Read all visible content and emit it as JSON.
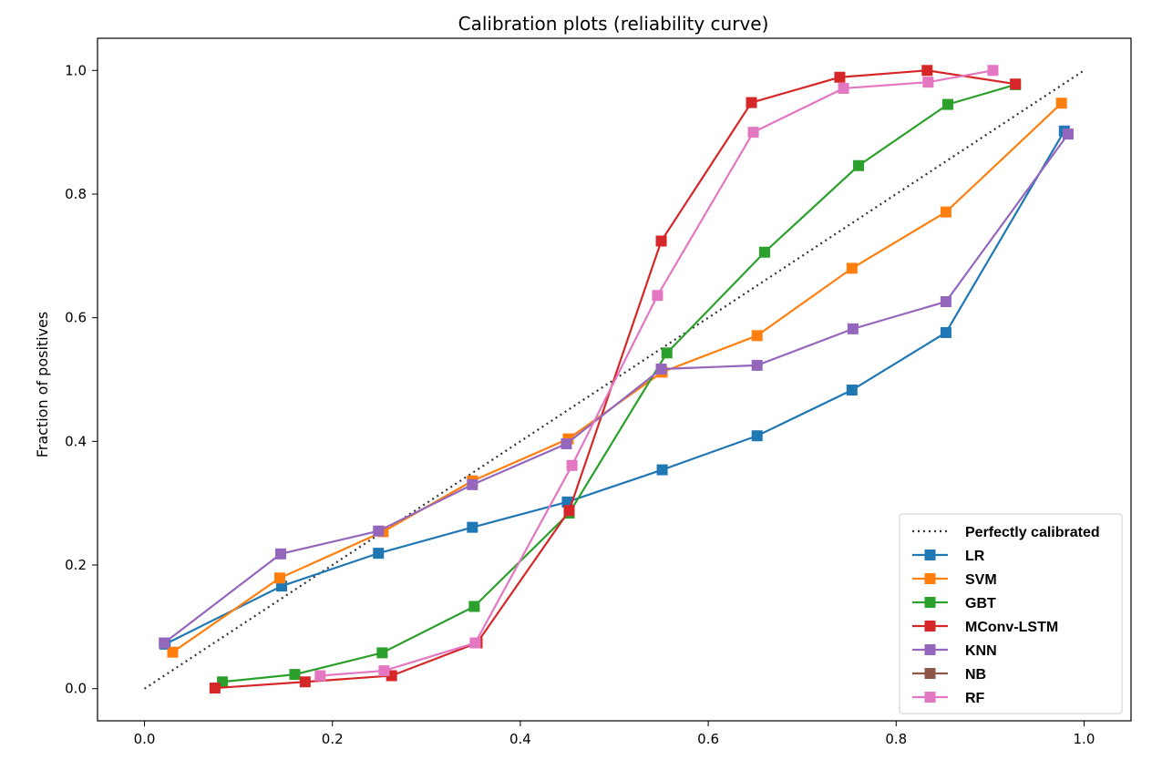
{
  "chart_data": {
    "type": "line",
    "title": "Calibration plots  (reliability curve)",
    "xlabel": "",
    "ylabel": "Fraction of positives",
    "xlim": [
      -0.05,
      1.05
    ],
    "ylim": [
      -0.052,
      1.052
    ],
    "xticks": [
      0.0,
      0.2,
      0.4,
      0.6,
      0.8,
      1.0
    ],
    "xtick_labels": [
      "0.0",
      "0.2",
      "0.4",
      "0.6",
      "0.8",
      "1.0"
    ],
    "yticks": [
      0.0,
      0.2,
      0.4,
      0.6,
      0.8,
      1.0
    ],
    "ytick_labels": [
      "0.0",
      "0.2",
      "0.4",
      "0.6",
      "0.8",
      "1.0"
    ],
    "grid": false,
    "legend_position": "lower-right",
    "reference": {
      "name": "Perfectly calibrated",
      "x": [
        0,
        1
      ],
      "y": [
        0,
        1
      ],
      "color": "#333333",
      "style": "dotted"
    },
    "series": [
      {
        "name": "LR",
        "color": "#1f77b4",
        "x": [
          0.022,
          0.146,
          0.249,
          0.349,
          0.45,
          0.551,
          0.652,
          0.753,
          0.853,
          0.979
        ],
        "y": [
          0.072,
          0.166,
          0.219,
          0.261,
          0.302,
          0.354,
          0.409,
          0.483,
          0.576,
          0.902
        ]
      },
      {
        "name": "SVM",
        "color": "#ff7f0e",
        "x": [
          0.03,
          0.144,
          0.254,
          0.349,
          0.451,
          0.551,
          0.652,
          0.753,
          0.853,
          0.976
        ],
        "y": [
          0.059,
          0.179,
          0.254,
          0.336,
          0.404,
          0.512,
          0.571,
          0.68,
          0.771,
          0.947
        ]
      },
      {
        "name": "GBT",
        "color": "#2ca02c",
        "x": [
          0.083,
          0.16,
          0.253,
          0.351,
          0.452,
          0.556,
          0.66,
          0.76,
          0.855,
          0.927
        ],
        "y": [
          0.011,
          0.023,
          0.058,
          0.133,
          0.284,
          0.543,
          0.706,
          0.846,
          0.945,
          0.977
        ]
      },
      {
        "name": "MConv-LSTM",
        "color": "#d62728",
        "x": [
          0.075,
          0.171,
          0.263,
          0.354,
          0.452,
          0.55,
          0.646,
          0.74,
          0.833,
          0.927
        ],
        "y": [
          0.001,
          0.011,
          0.021,
          0.074,
          0.288,
          0.724,
          0.948,
          0.989,
          1.0,
          0.978
        ]
      },
      {
        "name": "KNN",
        "color": "#9467bd",
        "x": [
          0.021,
          0.145,
          0.249,
          0.349,
          0.449,
          0.55,
          0.652,
          0.754,
          0.853,
          0.983
        ],
        "y": [
          0.074,
          0.218,
          0.255,
          0.33,
          0.396,
          0.517,
          0.523,
          0.582,
          0.626,
          0.897
        ]
      },
      {
        "name": "NB",
        "color": "#8c564b",
        "x": [],
        "y": []
      },
      {
        "name": "RF",
        "color": "#e377c2",
        "x": [
          0.187,
          0.255,
          0.352,
          0.455,
          0.546,
          0.648,
          0.744,
          0.834,
          0.903
        ],
        "y": [
          0.021,
          0.029,
          0.074,
          0.361,
          0.636,
          0.9,
          0.971,
          0.981,
          1.0
        ]
      }
    ]
  }
}
